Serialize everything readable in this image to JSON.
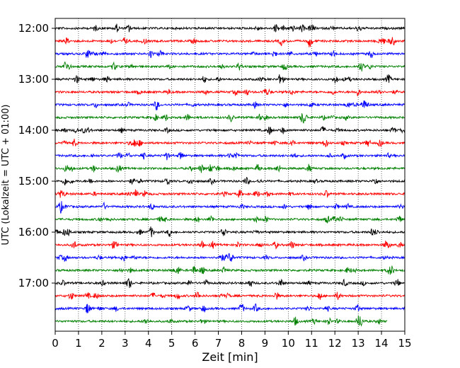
{
  "chart_data": {
    "type": "line",
    "title": "",
    "xlabel": "Zeit  [min]",
    "ylabel": "UTC (Lokalzeit = UTC + 01:00)",
    "xlim": [
      0,
      15
    ],
    "x_ticks": [
      0,
      1,
      2,
      3,
      4,
      5,
      6,
      7,
      8,
      9,
      10,
      11,
      12,
      13,
      14,
      15
    ],
    "y_ticks": [
      "12:00",
      "13:00",
      "14:00",
      "15:00",
      "16:00",
      "17:00"
    ],
    "grid": "vertical-dotted",
    "row_minutes": 15,
    "trace_colors": [
      "#000000",
      "#ff0000",
      "#0000ff",
      "#008000"
    ],
    "rows": [
      {
        "start": "12:00",
        "end_min": 15
      },
      {
        "start": "12:15",
        "end_min": 15
      },
      {
        "start": "12:30",
        "end_min": 15
      },
      {
        "start": "12:45",
        "end_min": 15
      },
      {
        "start": "13:00",
        "end_min": 15
      },
      {
        "start": "13:15",
        "end_min": 15
      },
      {
        "start": "13:30",
        "end_min": 15
      },
      {
        "start": "13:45",
        "end_min": 15
      },
      {
        "start": "14:00",
        "end_min": 15
      },
      {
        "start": "14:15",
        "end_min": 15
      },
      {
        "start": "14:30",
        "end_min": 15
      },
      {
        "start": "14:45",
        "end_min": 15
      },
      {
        "start": "15:00",
        "end_min": 15
      },
      {
        "start": "15:15",
        "end_min": 15
      },
      {
        "start": "15:30",
        "end_min": 15
      },
      {
        "start": "15:45",
        "end_min": 15
      },
      {
        "start": "16:00",
        "end_min": 15
      },
      {
        "start": "16:15",
        "end_min": 15
      },
      {
        "start": "16:30",
        "end_min": 15
      },
      {
        "start": "16:45",
        "end_min": 15
      },
      {
        "start": "17:00",
        "end_min": 15
      },
      {
        "start": "17:15",
        "end_min": 15
      },
      {
        "start": "17:30",
        "end_min": 15
      },
      {
        "start": "17:45",
        "end_min": 14.25
      }
    ]
  }
}
